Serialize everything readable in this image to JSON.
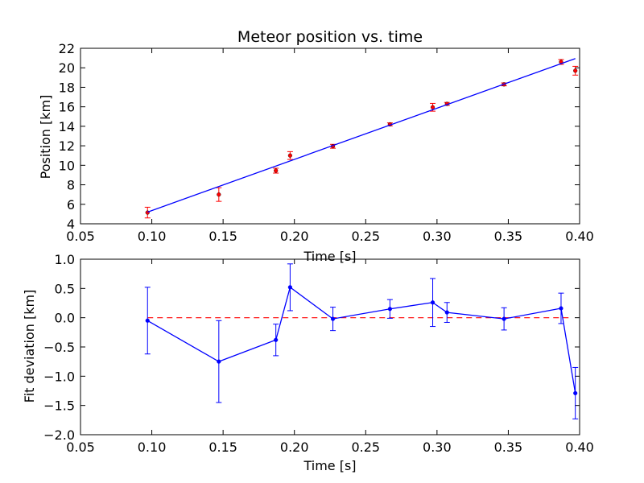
{
  "chart_data": [
    {
      "type": "scatter",
      "title": "Meteor position vs. time",
      "xlabel": "Time [s]",
      "ylabel": "Position [km]",
      "xlim": [
        0.05,
        0.4
      ],
      "ylim": [
        4,
        22
      ],
      "xticks": [
        "0.05",
        "0.10",
        "0.15",
        "0.20",
        "0.25",
        "0.30",
        "0.35",
        "0.40"
      ],
      "yticks": [
        "4",
        "6",
        "8",
        "10",
        "12",
        "14",
        "16",
        "18",
        "20",
        "22"
      ],
      "grid": false,
      "series": [
        {
          "marker": "point",
          "color": "#ff0000",
          "errorbars": true,
          "x": [
            0.097,
            0.147,
            0.187,
            0.197,
            0.227,
            0.267,
            0.297,
            0.307,
            0.347,
            0.387,
            0.397
          ],
          "y": [
            5.15,
            7.0,
            9.45,
            11.0,
            11.95,
            14.2,
            15.95,
            16.3,
            18.3,
            20.6,
            19.7
          ],
          "yerr": [
            0.55,
            0.7,
            0.25,
            0.4,
            0.2,
            0.15,
            0.4,
            0.15,
            0.15,
            0.25,
            0.45
          ]
        },
        {
          "marker": "line",
          "color": "#0000ff",
          "x": [
            0.097,
            0.397
          ],
          "y": [
            5.2,
            20.95
          ]
        }
      ]
    },
    {
      "type": "line",
      "title": "",
      "xlabel": "Time [s]",
      "ylabel": "Fit deviation [km]",
      "xlim": [
        0.05,
        0.4
      ],
      "ylim": [
        -2.0,
        1.0
      ],
      "xticks": [
        "0.05",
        "0.10",
        "0.15",
        "0.20",
        "0.25",
        "0.30",
        "0.35",
        "0.40"
      ],
      "yticks": [
        "−2.0",
        "−1.5",
        "−1.0",
        "−0.5",
        "0.0",
        "0.5",
        "1.0"
      ],
      "grid": false,
      "reference_line": {
        "y": 0.0,
        "style": "dashed",
        "color": "#ff0000"
      },
      "series": [
        {
          "marker": "point",
          "color": "#0000ff",
          "errorbars": true,
          "x": [
            0.097,
            0.147,
            0.187,
            0.197,
            0.227,
            0.267,
            0.297,
            0.307,
            0.347,
            0.387,
            0.397
          ],
          "y": [
            -0.05,
            -0.75,
            -0.38,
            0.52,
            -0.02,
            0.15,
            0.26,
            0.09,
            -0.02,
            0.16,
            -1.29
          ],
          "yerr": [
            0.57,
            0.7,
            0.27,
            0.4,
            0.2,
            0.16,
            0.41,
            0.17,
            0.19,
            0.26,
            0.44
          ]
        }
      ]
    }
  ]
}
